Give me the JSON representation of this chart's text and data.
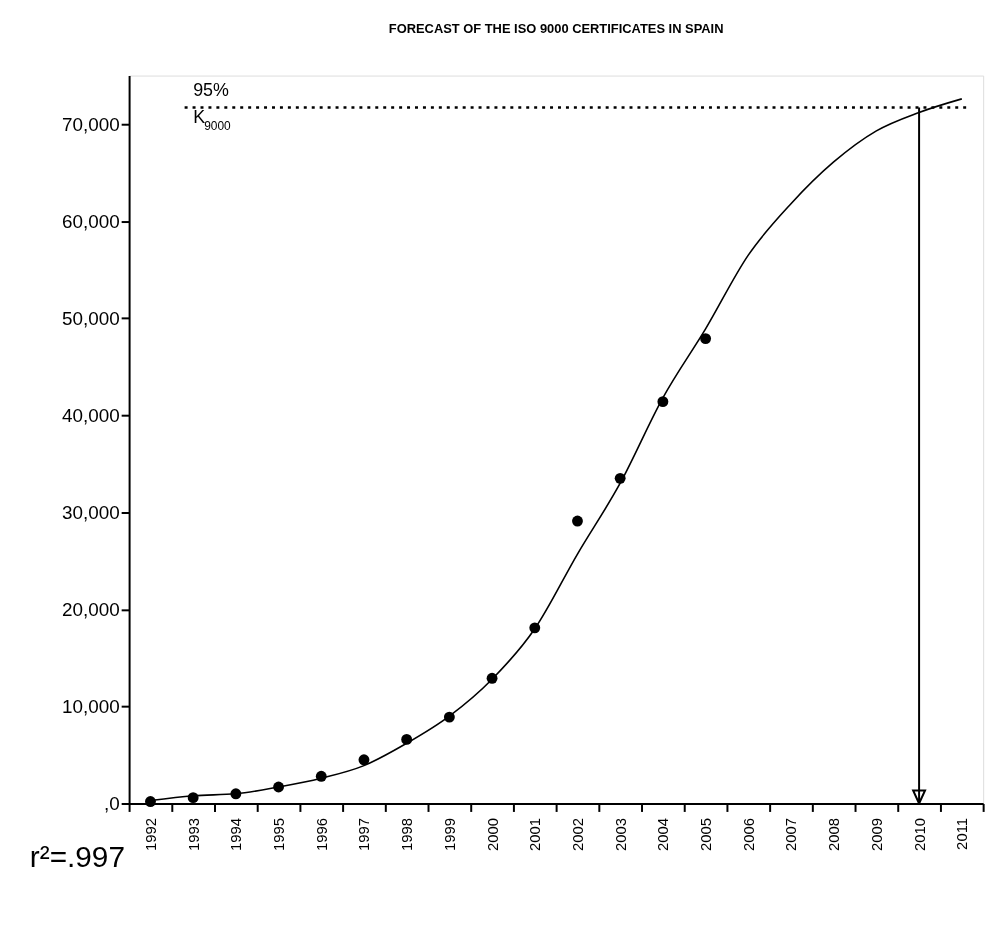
{
  "chart_data": {
    "type": "scatter",
    "title": "FORECAST OF THE ISO 9000 CERTIFICATES IN SPAIN",
    "categories": [
      "1992",
      "1993",
      "1994",
      "1995",
      "1996",
      "1997",
      "1998",
      "1999",
      "2000",
      "2001",
      "2002",
      "2003",
      "2004",
      "2005",
      "2006",
      "2007",
      "2008",
      "2009",
      "2010",
      "2011"
    ],
    "series": [
      {
        "color": "#000000",
        "marker": "circle",
        "values": [
          200,
          600,
          1000,
          1700,
          2800,
          4500,
          6600,
          8900,
          12900,
          18100,
          29100,
          33500,
          41400,
          47900,
          null,
          null,
          null,
          null,
          null,
          null
        ]
      },
      {
        "type": "line",
        "color": "#000000",
        "marker": "none",
        "line_style": "solid",
        "values": [
          300,
          800,
          1000,
          1700,
          2600,
          3900,
          6200,
          9000,
          12800,
          18000,
          25700,
          33000,
          41800,
          48900,
          56500,
          61800,
          66100,
          69300,
          71200,
          72600
        ]
      }
    ],
    "ylim": [
      0,
      75000
    ],
    "yticks": [
      {
        "value": 0,
        "label": ",0"
      },
      {
        "value": 10000,
        "label": "10,000"
      },
      {
        "value": 20000,
        "label": "20,000"
      },
      {
        "value": 30000,
        "label": "30,000"
      },
      {
        "value": 40000,
        "label": "40,000"
      },
      {
        "value": 50000,
        "label": "50,000"
      },
      {
        "value": 60000,
        "label": "60,000"
      },
      {
        "value": 70000,
        "label": "70,000"
      }
    ],
    "ref_lines": [
      {
        "axis": "y",
        "value": 71700,
        "label": "95% K$_{9000}$",
        "line_style": "dotted",
        "color": "#000000"
      },
      {
        "axis": "x",
        "value": "2010",
        "line_style": "solid",
        "color": "#000000"
      }
    ],
    "annotations": [
      "r²=.997"
    ]
  }
}
